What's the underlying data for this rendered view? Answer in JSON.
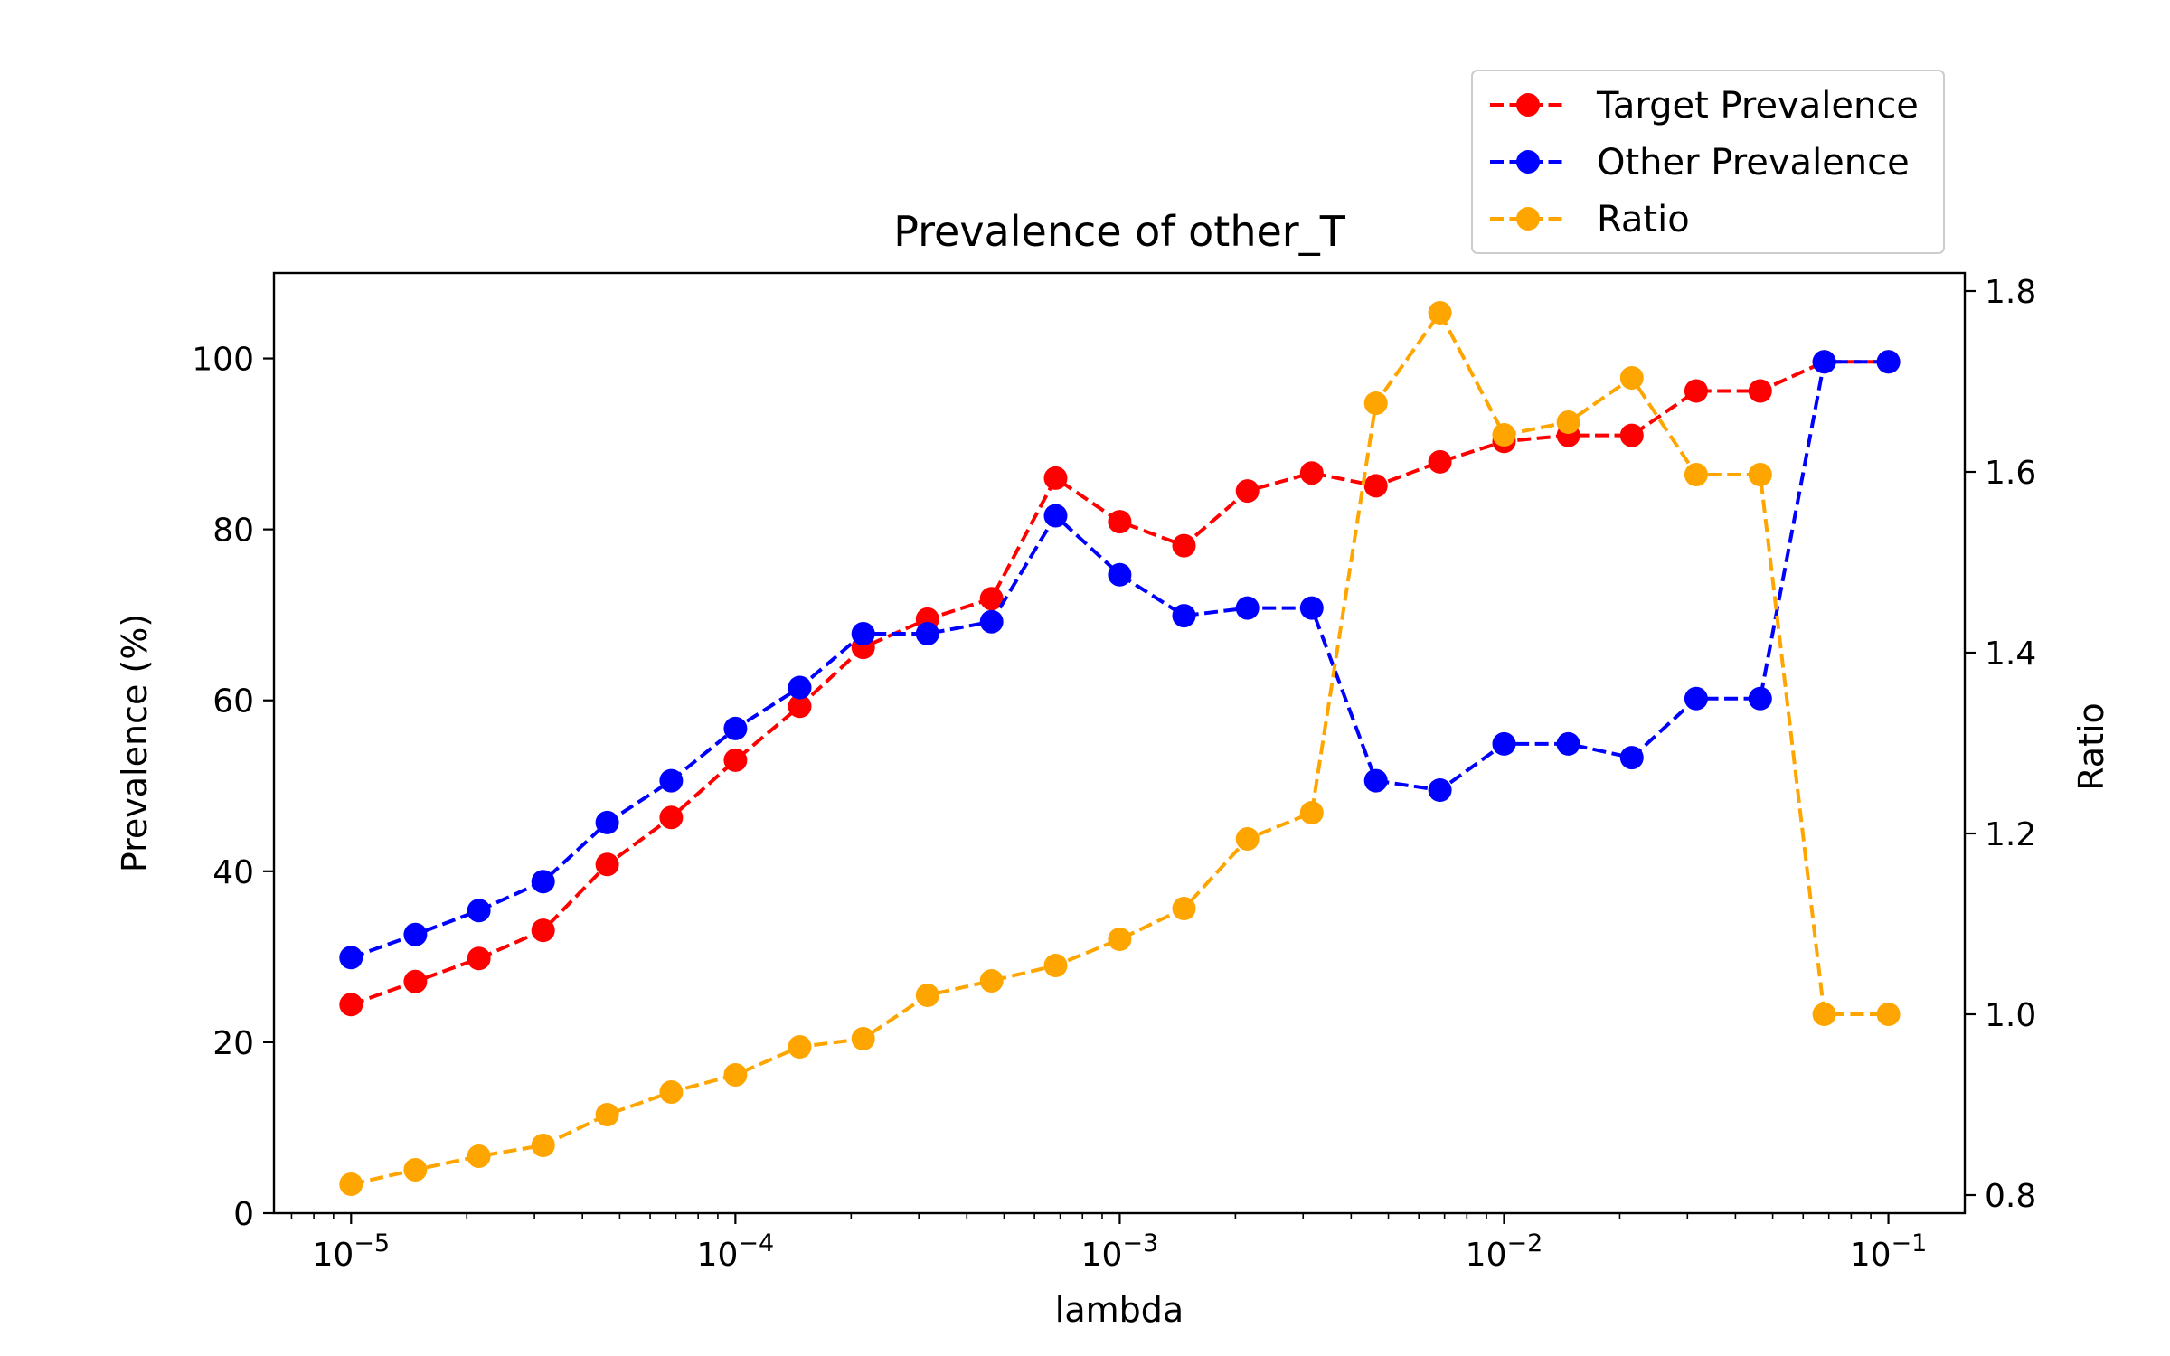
{
  "chart_data": {
    "type": "line",
    "title": "Prevalence of other_T",
    "xlabel": "lambda",
    "ylabel": "Prevalence (%)",
    "y2label": "Ratio",
    "xscale": "log",
    "xlim": [
      6.3e-06,
      0.158
    ],
    "ylim": [
      0,
      110
    ],
    "y2lim": [
      0.78,
      1.82
    ],
    "xticks": [
      {
        "value": 1e-05,
        "base": "10",
        "exp": "−5"
      },
      {
        "value": 0.0001,
        "base": "10",
        "exp": "−4"
      },
      {
        "value": 0.001,
        "base": "10",
        "exp": "−3"
      },
      {
        "value": 0.01,
        "base": "10",
        "exp": "−2"
      },
      {
        "value": 0.1,
        "base": "10",
        "exp": "−1"
      }
    ],
    "yticks": [
      "0",
      "20",
      "40",
      "60",
      "80",
      "100"
    ],
    "y2ticks": [
      "0.8",
      "1.0",
      "1.2",
      "1.4",
      "1.6",
      "1.8"
    ],
    "grid": false,
    "legend_position": "upper-right, above plot",
    "x": [
      1e-05,
      1.47e-05,
      2.15e-05,
      3.16e-05,
      4.64e-05,
      6.81e-05,
      0.0001,
      0.000147,
      0.000215,
      0.000316,
      0.000464,
      0.000681,
      0.001,
      0.00147,
      0.00215,
      0.00316,
      0.00464,
      0.00681,
      0.01,
      0.0147,
      0.0215,
      0.0316,
      0.0464,
      0.0681,
      0.1
    ],
    "series": [
      {
        "name": "Target Prevalence",
        "axis": "left",
        "color": "#ff0000",
        "values": [
          24.4,
          27.1,
          29.8,
          33.1,
          40.8,
          46.3,
          53.0,
          59.3,
          66.2,
          69.5,
          71.9,
          86.0,
          80.9,
          78.1,
          84.5,
          86.6,
          85.1,
          87.9,
          90.3,
          91.0,
          91.0,
          96.2,
          96.2,
          99.6,
          99.6
        ]
      },
      {
        "name": "Other Prevalence",
        "axis": "left",
        "color": "#0000ff",
        "values": [
          29.9,
          32.6,
          35.4,
          38.8,
          45.7,
          50.6,
          56.7,
          61.5,
          67.8,
          67.8,
          69.2,
          81.6,
          74.7,
          69.9,
          70.8,
          70.8,
          50.6,
          49.5,
          54.9,
          54.9,
          53.3,
          60.2,
          60.2,
          99.6,
          99.6
        ]
      },
      {
        "name": "Ratio",
        "axis": "right",
        "color": "#ffa500",
        "values": [
          0.812,
          0.828,
          0.843,
          0.855,
          0.889,
          0.914,
          0.933,
          0.964,
          0.973,
          1.021,
          1.037,
          1.054,
          1.083,
          1.117,
          1.194,
          1.223,
          1.676,
          1.776,
          1.641,
          1.655,
          1.704,
          1.597,
          1.597,
          1.0,
          1.0
        ]
      }
    ]
  }
}
